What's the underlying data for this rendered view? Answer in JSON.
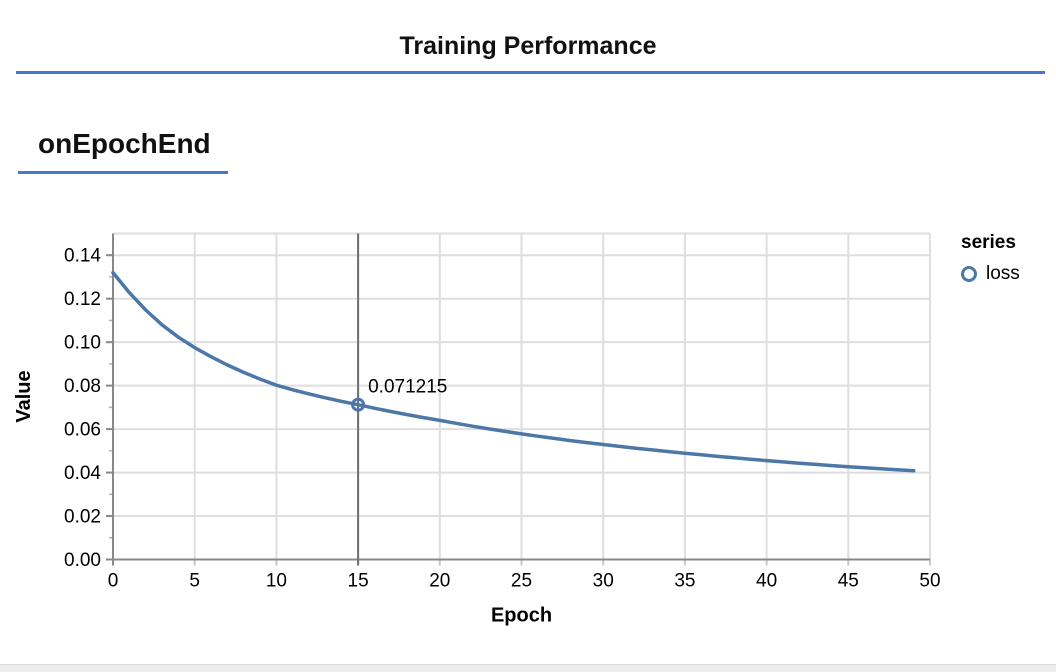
{
  "page": {
    "title": "Training Performance",
    "section_label": "onEpochEnd"
  },
  "accent": {
    "rule_color": "#4678d2",
    "axis_color": "#888888",
    "grid_color": "#dedede",
    "crosshair_color": "#6e6e6e",
    "bottom_bar_color": "#ececec"
  },
  "chart_data": {
    "type": "line",
    "xlabel": "Epoch",
    "ylabel": "Value",
    "xlim": [
      0,
      50
    ],
    "ylim": [
      0,
      0.15
    ],
    "x_ticks": [
      0,
      5,
      10,
      15,
      20,
      25,
      30,
      35,
      40,
      45,
      50
    ],
    "y_ticks": [
      0.0,
      0.02,
      0.04,
      0.06,
      0.08,
      0.1,
      0.12,
      0.14
    ],
    "grid": true,
    "legend": {
      "title": "series",
      "position": "right"
    },
    "series": [
      {
        "name": "loss",
        "color": "#4c78a8",
        "x": [
          0,
          1,
          2,
          3,
          4,
          5,
          6,
          7,
          8,
          9,
          10,
          11,
          12,
          13,
          14,
          15,
          16,
          17,
          18,
          19,
          20,
          21,
          22,
          23,
          24,
          25,
          26,
          27,
          28,
          29,
          30,
          31,
          32,
          33,
          34,
          35,
          36,
          37,
          38,
          39,
          40,
          41,
          42,
          43,
          44,
          45,
          46,
          47,
          48,
          49
        ],
        "values": [
          0.132,
          0.1228,
          0.1148,
          0.108,
          0.1023,
          0.0975,
          0.0933,
          0.0895,
          0.0861,
          0.083,
          0.0802,
          0.0781,
          0.0762,
          0.0744,
          0.07275,
          0.071215,
          0.0696,
          0.0681,
          0.06665,
          0.0653,
          0.064,
          0.06265,
          0.06135,
          0.0601,
          0.05892,
          0.0578,
          0.05672,
          0.0557,
          0.05472,
          0.05379,
          0.0529,
          0.05204,
          0.05121,
          0.05041,
          0.04964,
          0.0489,
          0.04817,
          0.04746,
          0.04678,
          0.04613,
          0.0455,
          0.04489,
          0.04431,
          0.04375,
          0.04321,
          0.0427,
          0.04221,
          0.04173,
          0.04126,
          0.0408
        ]
      }
    ],
    "highlight": {
      "x": 15,
      "value": 0.071215,
      "label": "0.071215"
    }
  }
}
